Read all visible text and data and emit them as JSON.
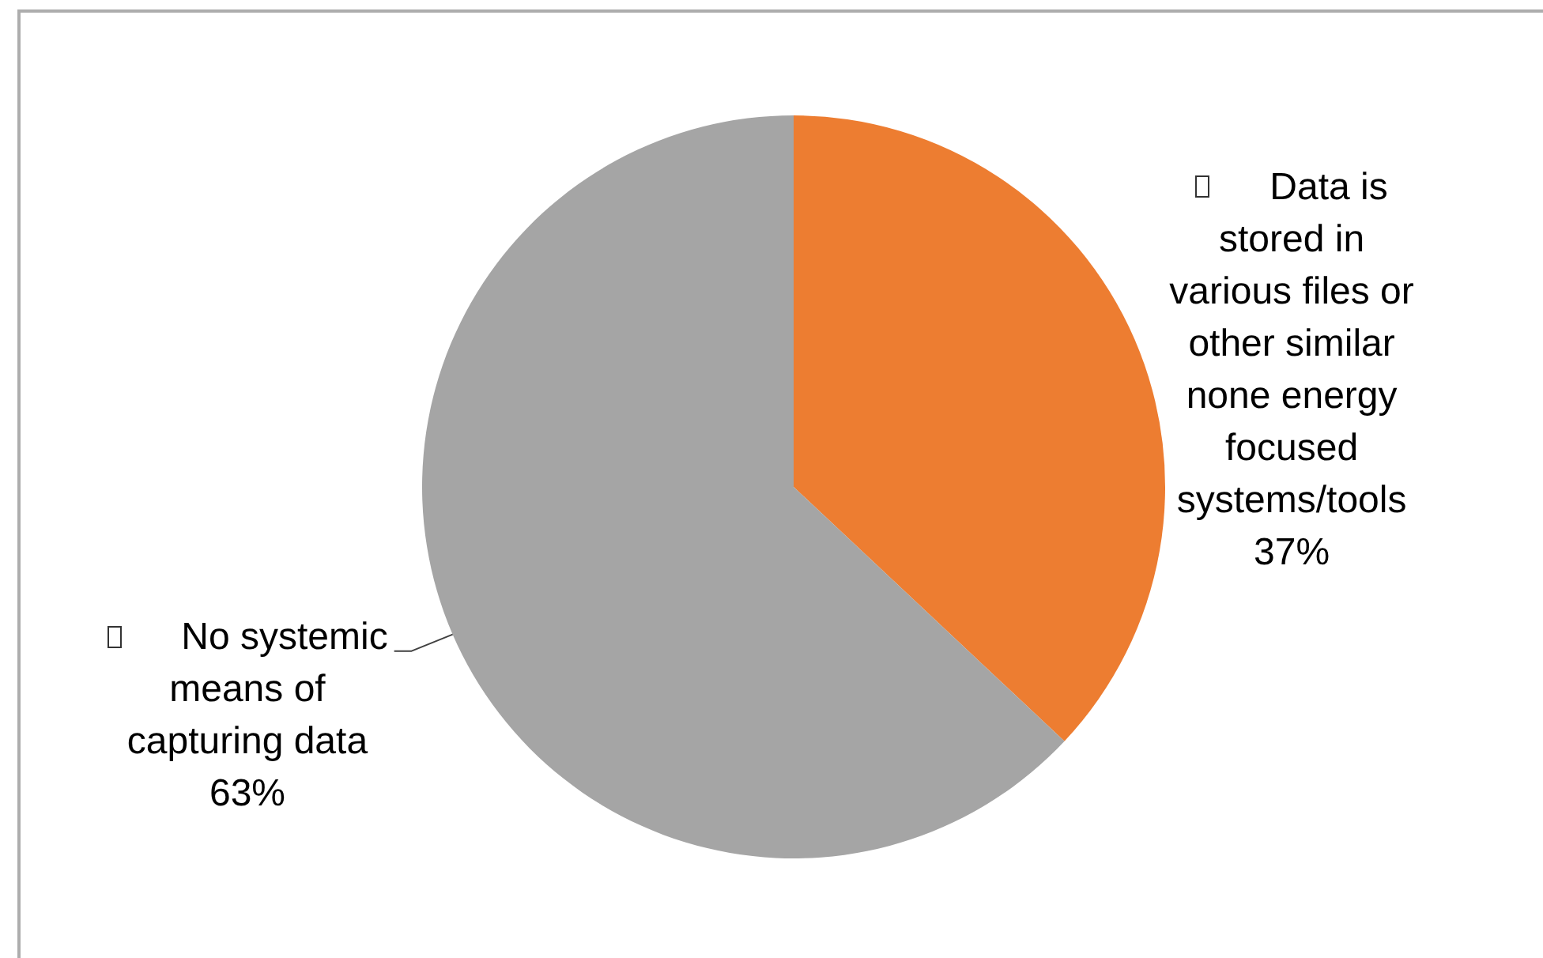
{
  "chart_data": {
    "type": "pie",
    "categories": [
      "Data is stored in various files or other similar none energy focused systems/tools",
      "No systemic means of capturing data"
    ],
    "values": [
      37,
      63
    ],
    "colors": [
      "#ed7d31",
      "#a5a5a5"
    ],
    "value_labels": [
      "37%",
      "63%"
    ]
  }
}
